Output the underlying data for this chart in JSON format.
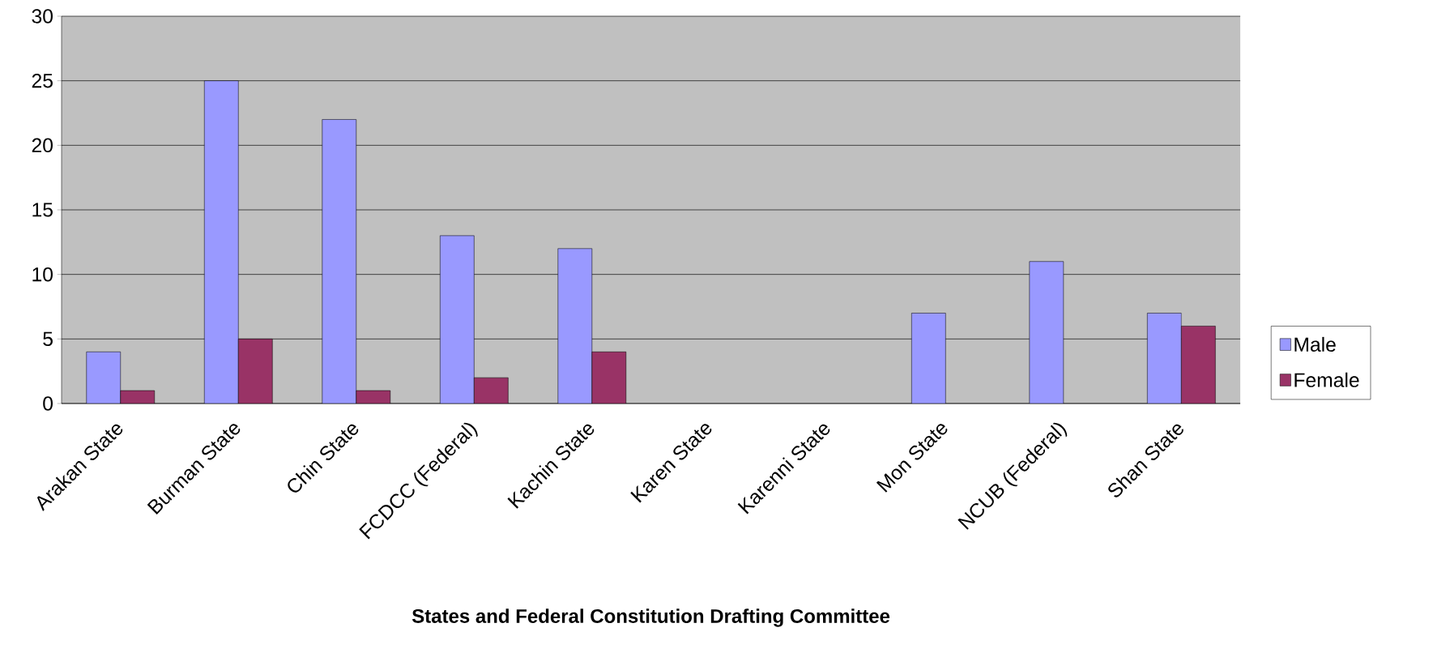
{
  "chart_data": {
    "type": "bar",
    "xlabel": "States and Federal Constitution Drafting Committee",
    "categories": [
      "Arakan State",
      "Burman State",
      "Chin State",
      "FCDCC (Federal)",
      "Kachin State",
      "Karen State",
      "Karenni State",
      "Mon State",
      "NCUB (Federal)",
      "Shan State"
    ],
    "series": [
      {
        "name": "Male",
        "color": "#9999ff",
        "values": [
          4,
          25,
          22,
          13,
          12,
          null,
          null,
          7,
          11,
          7
        ]
      },
      {
        "name": "Female",
        "color": "#993366",
        "values": [
          1,
          5,
          1,
          2,
          4,
          null,
          null,
          null,
          null,
          6
        ]
      }
    ],
    "ylim": [
      0,
      30
    ],
    "yticks": [
      0,
      5,
      10,
      15,
      20,
      25,
      30
    ],
    "grid": "y",
    "legend": "right"
  }
}
